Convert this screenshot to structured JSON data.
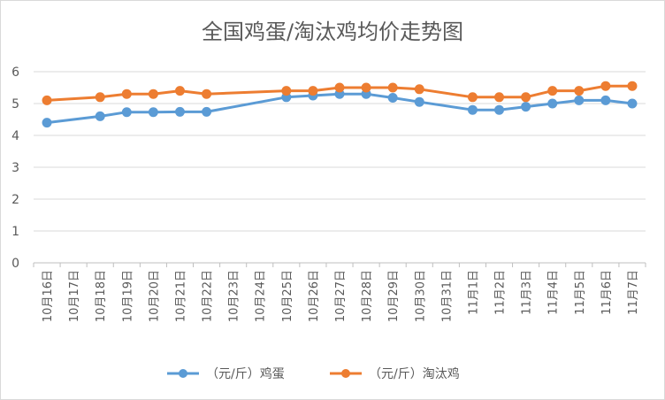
{
  "chart_data": {
    "type": "line",
    "title": "全国鸡蛋/淘汰鸡均价走势图",
    "xlabel": "",
    "ylabel": "",
    "ylim": [
      0,
      6
    ],
    "yticks": [
      "0",
      "1",
      "2",
      "3",
      "4",
      "5",
      "6"
    ],
    "grid": "horizontal",
    "legend_position": "bottom",
    "categories": [
      "10月16日",
      "10月17日",
      "10月18日",
      "10月19日",
      "10月20日",
      "10月21日",
      "10月22日",
      "10月23日",
      "10月24日",
      "10月25日",
      "10月26日",
      "10月27日",
      "10月28日",
      "10月29日",
      "10月30日",
      "10月31日",
      "11月1日",
      "11月2日",
      "11月3日",
      "11月4日",
      "11月5日",
      "11月6日",
      "11月7日"
    ],
    "series": [
      {
        "name": "（元/斤）鸡蛋",
        "color": "#5b9bd5",
        "values": [
          4.4,
          null,
          4.6,
          4.73,
          4.73,
          4.74,
          4.74,
          null,
          null,
          5.2,
          5.25,
          5.3,
          5.3,
          5.18,
          5.05,
          null,
          4.8,
          4.8,
          4.9,
          5.0,
          5.1,
          5.1,
          5.0
        ]
      },
      {
        "name": "（元/斤）淘汰鸡",
        "color": "#ed7d31",
        "values": [
          5.1,
          null,
          5.2,
          5.3,
          5.3,
          5.4,
          5.3,
          null,
          null,
          5.4,
          5.4,
          5.5,
          5.5,
          5.5,
          5.45,
          null,
          5.2,
          5.2,
          5.2,
          5.4,
          5.4,
          5.55,
          5.55
        ]
      }
    ]
  }
}
